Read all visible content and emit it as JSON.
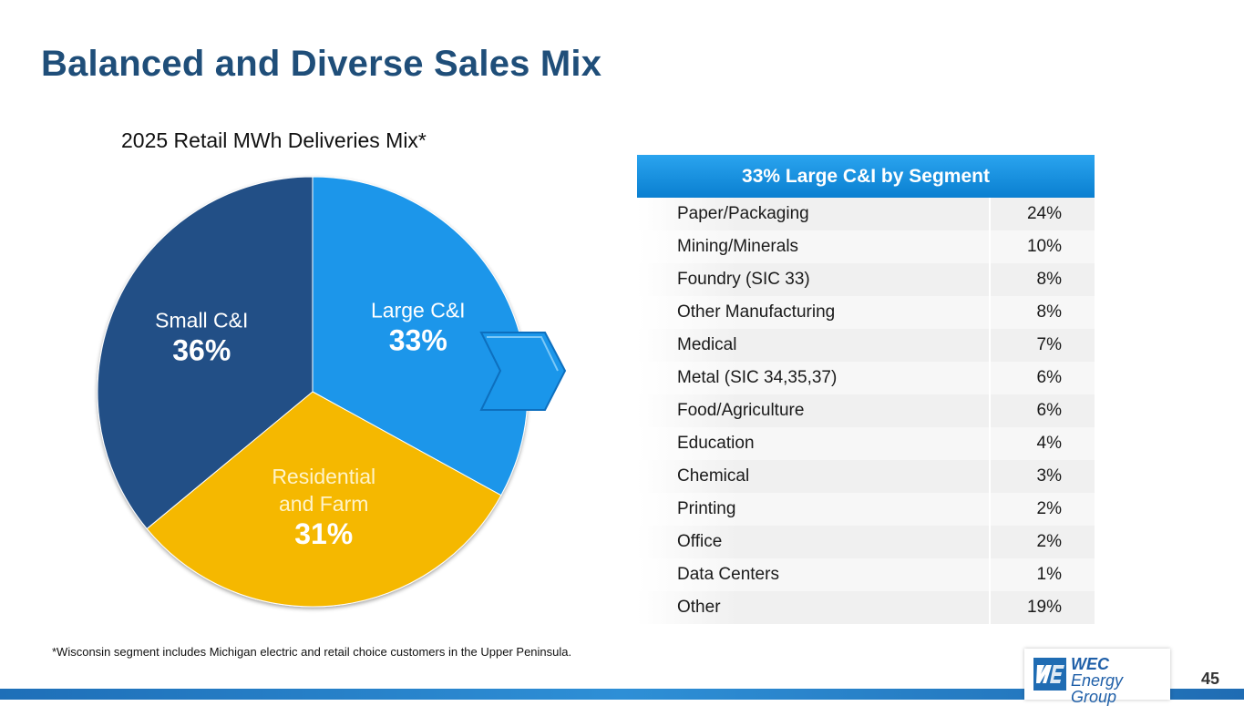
{
  "slide_title": "Balanced and Diverse Sales Mix",
  "chart_data": [
    {
      "type": "pie",
      "title": "2025 Retail MWh Deliveries Mix*",
      "categories": [
        "Large C&I",
        "Residential and Farm",
        "Small C&I"
      ],
      "label_lines": [
        [
          "Large C&I"
        ],
        [
          "Residential",
          "and Farm"
        ],
        [
          "Small C&I"
        ]
      ],
      "values": [
        33,
        31,
        36
      ],
      "value_labels": [
        "33%",
        "31%",
        "36%"
      ],
      "colors": [
        "#1a96ea",
        "#f5b800",
        "#234f86"
      ],
      "label_colors": [
        "#ffffff",
        "#fff3c8",
        "#ffffff"
      ]
    },
    {
      "type": "table",
      "title": "33% Large C&I by Segment",
      "rows": [
        {
          "segment": "Paper/Packaging",
          "share": "24%"
        },
        {
          "segment": "Mining/Minerals",
          "share": "10%"
        },
        {
          "segment": "Foundry (SIC 33)",
          "share": "8%"
        },
        {
          "segment": "Other Manufacturing",
          "share": "8%"
        },
        {
          "segment": "Medical",
          "share": "7%"
        },
        {
          "segment": "Metal (SIC 34,35,37)",
          "share": "6%"
        },
        {
          "segment": "Food/Agriculture",
          "share": "6%"
        },
        {
          "segment": "Education",
          "share": "4%"
        },
        {
          "segment": "Chemical",
          "share": "3%"
        },
        {
          "segment": "Printing",
          "share": "2%"
        },
        {
          "segment": "Office",
          "share": "2%"
        },
        {
          "segment": "Data Centers",
          "share": "1%"
        },
        {
          "segment": "Other",
          "share": "19%"
        }
      ]
    }
  ],
  "footnote": "*Wisconsin segment includes Michigan electric and retail choice customers in the Upper Peninsula.",
  "logo": {
    "line1": "WEC",
    "line2": "Energy Group"
  },
  "page_number": "45",
  "colors": {
    "title": "#1f4e79",
    "accent": "#1a96ea",
    "bar": "#1e6fb8"
  }
}
